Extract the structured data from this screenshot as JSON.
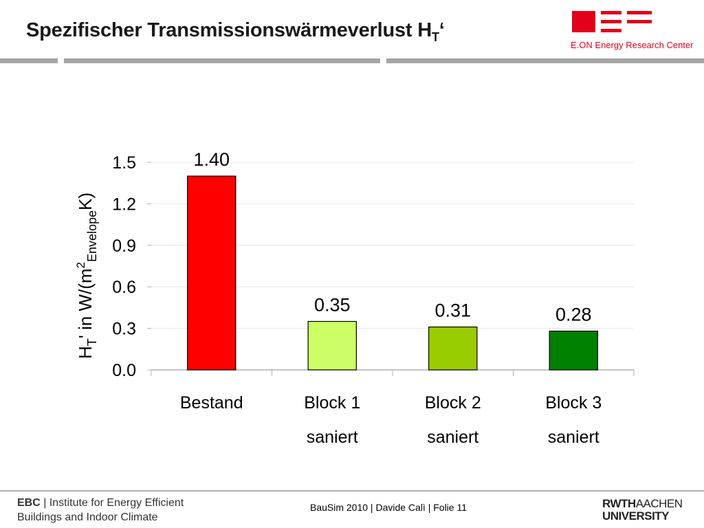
{
  "slide": {
    "title_main": "Spezifischer Transmissionswärmeverlust H",
    "title_sub": "T",
    "title_suffix": "‘"
  },
  "logos": {
    "eon_text": "E.ON Energy Research Center",
    "eon_color": "#e2001a",
    "rwth_line1_bold": "RWTH",
    "rwth_line1_light": "AACHEN",
    "rwth_line2": "UNIVERSITY"
  },
  "footer": {
    "institute_abbr": "EBC",
    "institute_line1": "Institute for Energy Efficient",
    "institute_line2": "Buildings and Indoor Climate",
    "center_text": "BauSim 2010 | Davide Calì | Folie 11"
  },
  "chart_data": {
    "type": "bar",
    "title": "",
    "categories": [
      [
        "Bestand",
        ""
      ],
      [
        "Block 1",
        "saniert"
      ],
      [
        "Block 2",
        "saniert"
      ],
      [
        "Block 3",
        "saniert"
      ]
    ],
    "values": [
      1.4,
      0.35,
      0.31,
      0.28
    ],
    "data_labels": [
      "1.40",
      "0.35",
      "0.31",
      "0.28"
    ],
    "bar_colors": [
      "#ff0000",
      "#ccff66",
      "#99cc00",
      "#008000"
    ],
    "ylabel_parts": [
      "H",
      "T",
      "' in W/(m",
      "2",
      "Envelope",
      "K)"
    ],
    "ylim": [
      0,
      1.5
    ],
    "yticks": [
      "0.0",
      "0.3",
      "0.6",
      "0.9",
      "1.2",
      "1.5"
    ],
    "grid": true,
    "legend": "none"
  }
}
